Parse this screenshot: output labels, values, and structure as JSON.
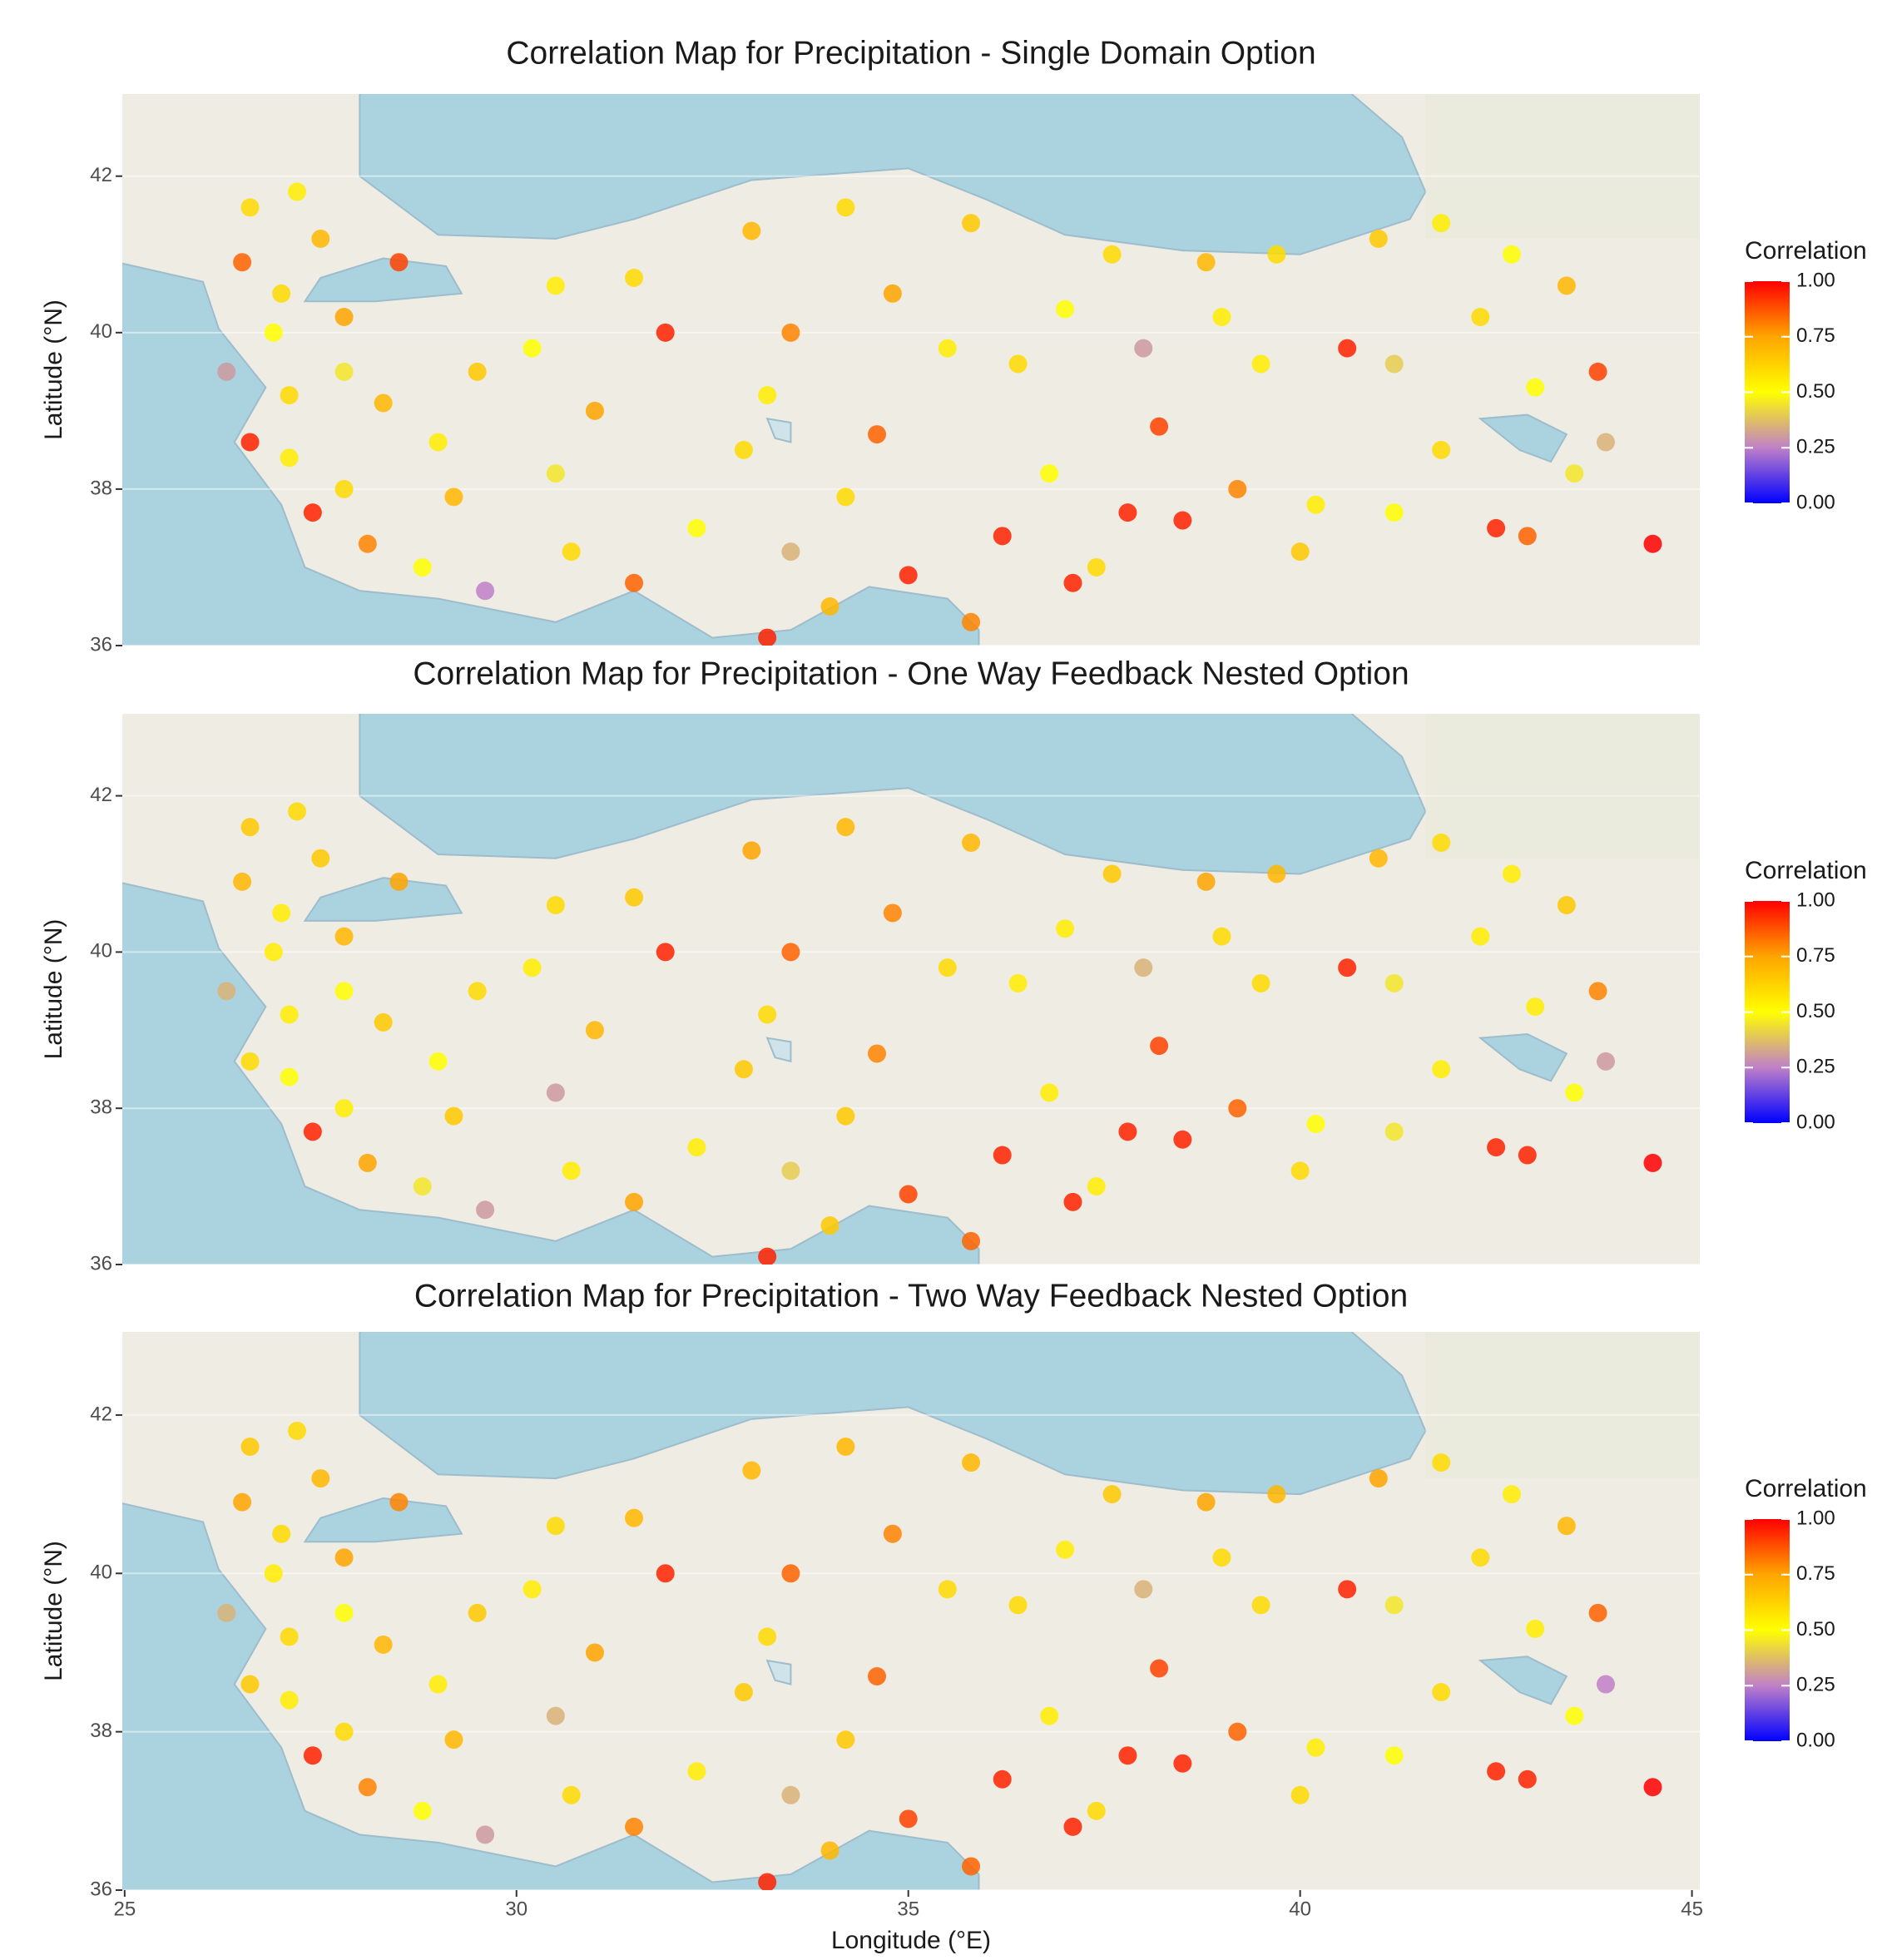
{
  "chart_data": [
    {
      "type": "scatter",
      "title": "Correlation Map for Precipitation - Single Domain Option",
      "ylabel": "Latitude (°N)",
      "legend_title": "Correlation",
      "xlim": [
        24.97,
        45.1
      ],
      "ylim": [
        36,
        43.05
      ],
      "yticks": [
        36,
        38,
        40,
        42
      ],
      "clim": [
        0,
        1
      ],
      "colorscale": [
        "#0000ff",
        "#c080c8",
        "#ffff00",
        "#ffa500",
        "#ff0000"
      ],
      "cticks": [
        {
          "value": 0,
          "label": "0.00"
        },
        {
          "value": 0.25,
          "label": "0.25"
        },
        {
          "value": 0.5,
          "label": "0.50"
        },
        {
          "value": 0.75,
          "label": "0.75"
        },
        {
          "value": 1,
          "label": "1.00"
        }
      ],
      "x": [
        26.6,
        27.2,
        27.5,
        26.5,
        27.0,
        26.9,
        27.8,
        28.5,
        26.3,
        27.1,
        27.8,
        28.3,
        26.6,
        27.1,
        27.4,
        27.8,
        28.1,
        28.8,
        29.2,
        29.0,
        29.5,
        30.2,
        30.5,
        31.5,
        31.9,
        31.0,
        30.5,
        30.7,
        29.6,
        31.5,
        32.3,
        32.9,
        33.2,
        33.5,
        33.0,
        34.2,
        35.8,
        34.8,
        35.5,
        34.6,
        34.2,
        33.5,
        33.2,
        34.0,
        35.0,
        35.8,
        36.2,
        36.8,
        36.4,
        37.0,
        37.6,
        38.8,
        39.7,
        41.0,
        41.8,
        42.7,
        43.4,
        42.3,
        40.6,
        39.5,
        38.2,
        37.8,
        38.5,
        39.2,
        40.2,
        41.2,
        41.8,
        42.5,
        43.5,
        43.9,
        43.8,
        44.5,
        42.9,
        40.0,
        37.1,
        37.4,
        38.0,
        39.0,
        41.2,
        43.0
      ],
      "y": [
        41.6,
        41.8,
        41.2,
        40.9,
        40.5,
        40.0,
        40.2,
        40.9,
        39.5,
        39.2,
        39.5,
        39.1,
        38.6,
        38.4,
        37.7,
        38.0,
        37.3,
        37.0,
        37.9,
        38.6,
        39.5,
        39.8,
        40.6,
        40.7,
        40.0,
        39.0,
        38.2,
        37.2,
        36.7,
        36.8,
        37.5,
        38.5,
        39.2,
        40.0,
        41.3,
        41.6,
        41.4,
        40.5,
        39.8,
        38.7,
        37.9,
        37.2,
        36.1,
        36.5,
        36.9,
        36.3,
        37.4,
        38.2,
        39.6,
        40.3,
        41.0,
        40.9,
        41.0,
        41.2,
        41.4,
        41.0,
        40.6,
        40.2,
        39.8,
        39.6,
        38.8,
        37.7,
        37.6,
        38.0,
        37.8,
        37.7,
        38.5,
        37.5,
        38.2,
        38.6,
        39.5,
        37.3,
        37.4,
        37.2,
        36.8,
        37.0,
        39.8,
        40.2,
        39.6,
        39.3
      ],
      "values": [
        0.6,
        0.55,
        0.7,
        0.85,
        0.6,
        0.5,
        0.75,
        0.9,
        0.3,
        0.6,
        0.45,
        0.7,
        0.95,
        0.55,
        0.95,
        0.6,
        0.8,
        0.5,
        0.7,
        0.55,
        0.65,
        0.5,
        0.55,
        0.6,
        0.95,
        0.75,
        0.45,
        0.6,
        0.25,
        0.85,
        0.5,
        0.6,
        0.55,
        0.8,
        0.7,
        0.6,
        0.65,
        0.75,
        0.55,
        0.85,
        0.6,
        0.35,
        0.95,
        0.7,
        0.95,
        0.8,
        0.95,
        0.5,
        0.6,
        0.5,
        0.6,
        0.7,
        0.6,
        0.65,
        0.55,
        0.5,
        0.7,
        0.6,
        0.95,
        0.55,
        0.9,
        0.95,
        0.95,
        0.8,
        0.55,
        0.5,
        0.6,
        0.95,
        0.45,
        0.35,
        0.9,
        1.0,
        0.85,
        0.65,
        0.95,
        0.6,
        0.3,
        0.55,
        0.4,
        0.5
      ]
    },
    {
      "type": "scatter",
      "title": "Correlation Map for Precipitation - One Way Feedback Nested Option",
      "ylabel": "Latitude (°N)",
      "legend_title": "Correlation",
      "xlim": [
        24.97,
        45.1
      ],
      "ylim": [
        36,
        43.05
      ],
      "yticks": [
        36,
        38,
        40,
        42
      ],
      "clim": [
        0,
        1
      ],
      "colorscale": [
        "#0000ff",
        "#c080c8",
        "#ffff00",
        "#ffa500",
        "#ff0000"
      ],
      "cticks": [
        {
          "value": 0,
          "label": "0.00"
        },
        {
          "value": 0.25,
          "label": "0.25"
        },
        {
          "value": 0.5,
          "label": "0.50"
        },
        {
          "value": 0.75,
          "label": "0.75"
        },
        {
          "value": 1,
          "label": "1.00"
        }
      ],
      "x": [
        26.6,
        27.2,
        27.5,
        26.5,
        27.0,
        26.9,
        27.8,
        28.5,
        26.3,
        27.1,
        27.8,
        28.3,
        26.6,
        27.1,
        27.4,
        27.8,
        28.1,
        28.8,
        29.2,
        29.0,
        29.5,
        30.2,
        30.5,
        31.5,
        31.9,
        31.0,
        30.5,
        30.7,
        29.6,
        31.5,
        32.3,
        32.9,
        33.2,
        33.5,
        33.0,
        34.2,
        35.8,
        34.8,
        35.5,
        34.6,
        34.2,
        33.5,
        33.2,
        34.0,
        35.0,
        35.8,
        36.2,
        36.8,
        36.4,
        37.0,
        37.6,
        38.8,
        39.7,
        41.0,
        41.8,
        42.7,
        43.4,
        42.3,
        40.6,
        39.5,
        38.2,
        37.8,
        38.5,
        39.2,
        40.2,
        41.2,
        41.8,
        42.5,
        43.5,
        43.9,
        43.8,
        44.5,
        42.9,
        40.0,
        37.1,
        37.4,
        38.0,
        39.0,
        41.2,
        43.0
      ],
      "y": [
        41.6,
        41.8,
        41.2,
        40.9,
        40.5,
        40.0,
        40.2,
        40.9,
        39.5,
        39.2,
        39.5,
        39.1,
        38.6,
        38.4,
        37.7,
        38.0,
        37.3,
        37.0,
        37.9,
        38.6,
        39.5,
        39.8,
        40.6,
        40.7,
        40.0,
        39.0,
        38.2,
        37.2,
        36.7,
        36.8,
        37.5,
        38.5,
        39.2,
        40.0,
        41.3,
        41.6,
        41.4,
        40.5,
        39.8,
        38.7,
        37.9,
        37.2,
        36.1,
        36.5,
        36.9,
        36.3,
        37.4,
        38.2,
        39.6,
        40.3,
        41.0,
        40.9,
        41.0,
        41.2,
        41.4,
        41.0,
        40.6,
        40.2,
        39.8,
        39.6,
        38.8,
        37.7,
        37.6,
        38.0,
        37.8,
        37.7,
        38.5,
        37.5,
        38.2,
        38.6,
        39.5,
        37.3,
        37.4,
        37.2,
        36.8,
        37.0,
        39.8,
        40.2,
        39.6,
        39.3
      ],
      "values": [
        0.65,
        0.6,
        0.65,
        0.7,
        0.55,
        0.55,
        0.7,
        0.75,
        0.35,
        0.55,
        0.5,
        0.65,
        0.6,
        0.5,
        0.95,
        0.55,
        0.75,
        0.45,
        0.65,
        0.5,
        0.6,
        0.55,
        0.6,
        0.65,
        0.95,
        0.7,
        0.3,
        0.55,
        0.3,
        0.75,
        0.55,
        0.65,
        0.6,
        0.85,
        0.75,
        0.7,
        0.7,
        0.8,
        0.6,
        0.8,
        0.65,
        0.4,
        0.95,
        0.65,
        0.9,
        0.85,
        0.95,
        0.55,
        0.55,
        0.55,
        0.65,
        0.75,
        0.7,
        0.7,
        0.6,
        0.55,
        0.65,
        0.55,
        0.95,
        0.6,
        0.9,
        0.95,
        0.95,
        0.85,
        0.5,
        0.45,
        0.55,
        0.95,
        0.5,
        0.3,
        0.8,
        1.0,
        0.95,
        0.6,
        0.95,
        0.55,
        0.35,
        0.6,
        0.45,
        0.55
      ]
    },
    {
      "type": "scatter",
      "title": "Correlation Map for Precipitation - Two Way Feedback Nested Option",
      "ylabel": "Latitude (°N)",
      "xlabel": "Longitude (°E)",
      "legend_title": "Correlation",
      "xlim": [
        24.97,
        45.1
      ],
      "ylim": [
        36,
        43.05
      ],
      "yticks": [
        36,
        38,
        40,
        42
      ],
      "xticks": [
        25,
        30,
        35,
        40,
        45
      ],
      "clim": [
        0,
        1
      ],
      "colorscale": [
        "#0000ff",
        "#c080c8",
        "#ffff00",
        "#ffa500",
        "#ff0000"
      ],
      "cticks": [
        {
          "value": 0,
          "label": "0.00"
        },
        {
          "value": 0.25,
          "label": "0.25"
        },
        {
          "value": 0.5,
          "label": "0.50"
        },
        {
          "value": 0.75,
          "label": "0.75"
        },
        {
          "value": 1,
          "label": "1.00"
        }
      ],
      "x": [
        26.6,
        27.2,
        27.5,
        26.5,
        27.0,
        26.9,
        27.8,
        28.5,
        26.3,
        27.1,
        27.8,
        28.3,
        26.6,
        27.1,
        27.4,
        27.8,
        28.1,
        28.8,
        29.2,
        29.0,
        29.5,
        30.2,
        30.5,
        31.5,
        31.9,
        31.0,
        30.5,
        30.7,
        29.6,
        31.5,
        32.3,
        32.9,
        33.2,
        33.5,
        33.0,
        34.2,
        35.8,
        34.8,
        35.5,
        34.6,
        34.2,
        33.5,
        33.2,
        34.0,
        35.0,
        35.8,
        36.2,
        36.8,
        36.4,
        37.0,
        37.6,
        38.8,
        39.7,
        41.0,
        41.8,
        42.7,
        43.4,
        42.3,
        40.6,
        39.5,
        38.2,
        37.8,
        38.5,
        39.2,
        40.2,
        41.2,
        41.8,
        42.5,
        43.5,
        43.9,
        43.8,
        44.5,
        42.9,
        40.0,
        37.1,
        37.4,
        38.0,
        39.0,
        41.2,
        43.0
      ],
      "y": [
        41.6,
        41.8,
        41.2,
        40.9,
        40.5,
        40.0,
        40.2,
        40.9,
        39.5,
        39.2,
        39.5,
        39.1,
        38.6,
        38.4,
        37.7,
        38.0,
        37.3,
        37.0,
        37.9,
        38.6,
        39.5,
        39.8,
        40.6,
        40.7,
        40.0,
        39.0,
        38.2,
        37.2,
        36.7,
        36.8,
        37.5,
        38.5,
        39.2,
        40.0,
        41.3,
        41.6,
        41.4,
        40.5,
        39.8,
        38.7,
        37.9,
        37.2,
        36.1,
        36.5,
        36.9,
        36.3,
        37.4,
        38.2,
        39.6,
        40.3,
        41.0,
        40.9,
        41.0,
        41.2,
        41.4,
        41.0,
        40.6,
        40.2,
        39.8,
        39.6,
        38.8,
        37.7,
        37.6,
        38.0,
        37.8,
        37.7,
        38.5,
        37.5,
        38.2,
        38.6,
        39.5,
        37.3,
        37.4,
        37.2,
        36.8,
        37.0,
        39.8,
        40.2,
        39.6,
        39.3
      ],
      "values": [
        0.65,
        0.6,
        0.7,
        0.75,
        0.6,
        0.55,
        0.75,
        0.8,
        0.35,
        0.6,
        0.5,
        0.7,
        0.65,
        0.55,
        0.95,
        0.6,
        0.8,
        0.5,
        0.7,
        0.55,
        0.65,
        0.55,
        0.6,
        0.7,
        0.95,
        0.75,
        0.35,
        0.6,
        0.3,
        0.8,
        0.55,
        0.65,
        0.6,
        0.85,
        0.7,
        0.7,
        0.7,
        0.8,
        0.6,
        0.85,
        0.65,
        0.35,
        0.95,
        0.7,
        0.9,
        0.85,
        0.95,
        0.55,
        0.6,
        0.55,
        0.65,
        0.75,
        0.7,
        0.75,
        0.6,
        0.55,
        0.7,
        0.6,
        0.95,
        0.6,
        0.9,
        0.95,
        0.95,
        0.85,
        0.55,
        0.5,
        0.6,
        0.95,
        0.5,
        0.25,
        0.85,
        1.0,
        0.95,
        0.6,
        0.95,
        0.6,
        0.35,
        0.6,
        0.45,
        0.55
      ]
    }
  ]
}
